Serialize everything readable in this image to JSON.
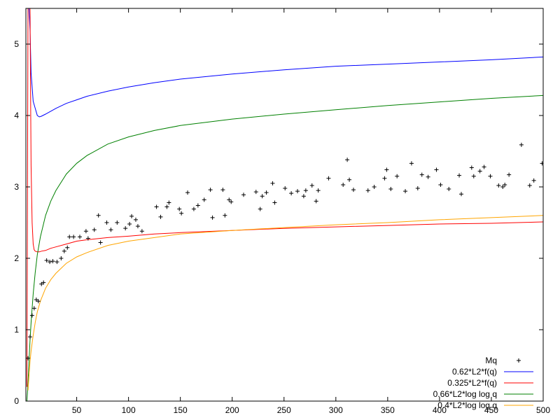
{
  "chart_data": {
    "type": "line",
    "xlim": [
      1,
      500
    ],
    "ylim": [
      0,
      5.5
    ],
    "xticks": [
      50,
      100,
      150,
      200,
      250,
      300,
      350,
      400,
      450,
      500
    ],
    "yticks": [
      0,
      1,
      2,
      3,
      4,
      5
    ],
    "grid": false,
    "legend_position": "bottom-right",
    "series": [
      {
        "name": "0.62*L2*f(q)",
        "color": "#0000ff",
        "style": "line",
        "x": [
          2,
          3,
          4,
          5,
          6,
          8,
          10,
          12,
          14,
          16,
          20,
          25,
          30,
          40,
          50,
          60,
          80,
          100,
          125,
          150,
          200,
          250,
          300,
          350,
          400,
          450,
          500
        ],
        "y": [
          5.5,
          5.5,
          5.5,
          5.2,
          4.6,
          4.2,
          4.1,
          4.0,
          3.98,
          3.99,
          4.02,
          4.06,
          4.1,
          4.17,
          4.22,
          4.27,
          4.34,
          4.4,
          4.46,
          4.51,
          4.58,
          4.64,
          4.69,
          4.72,
          4.75,
          4.78,
          4.82
        ]
      },
      {
        "name": "0.325*L2*f(q)",
        "color": "#ff0000",
        "style": "line",
        "x": [
          2,
          3,
          4,
          5,
          6,
          7,
          8,
          9,
          10,
          12,
          14,
          16,
          20,
          25,
          30,
          40,
          50,
          60,
          80,
          100,
          125,
          150,
          200,
          250,
          300,
          350,
          400,
          450,
          500
        ],
        "y": [
          0.2,
          5.5,
          5.5,
          5.5,
          3.3,
          2.5,
          2.2,
          2.12,
          2.1,
          2.09,
          2.09,
          2.1,
          2.11,
          2.14,
          2.16,
          2.2,
          2.24,
          2.26,
          2.29,
          2.31,
          2.34,
          2.36,
          2.39,
          2.42,
          2.44,
          2.46,
          2.48,
          2.49,
          2.51
        ]
      },
      {
        "name": "0.66*L2*log log q",
        "color": "#008000",
        "style": "line",
        "x": [
          2,
          3,
          4,
          5,
          6,
          8,
          10,
          12,
          15,
          20,
          25,
          30,
          40,
          50,
          60,
          80,
          100,
          125,
          150,
          200,
          250,
          300,
          350,
          400,
          450,
          500
        ],
        "y": [
          0.0,
          0.25,
          0.55,
          0.85,
          1.1,
          1.5,
          1.8,
          2.05,
          2.3,
          2.6,
          2.8,
          2.95,
          3.18,
          3.33,
          3.44,
          3.6,
          3.7,
          3.79,
          3.86,
          3.95,
          4.02,
          4.08,
          4.14,
          4.19,
          4.24,
          4.28
        ]
      },
      {
        "name": "0.4*L2*log log q",
        "color": "#ffa500",
        "style": "line",
        "x": [
          3,
          4,
          5,
          6,
          8,
          10,
          12,
          15,
          20,
          25,
          30,
          40,
          50,
          60,
          80,
          100,
          125,
          150,
          200,
          250,
          300,
          350,
          400,
          450,
          500
        ],
        "y": [
          0.15,
          0.35,
          0.55,
          0.7,
          0.92,
          1.1,
          1.25,
          1.4,
          1.58,
          1.7,
          1.79,
          1.93,
          2.02,
          2.08,
          2.18,
          2.24,
          2.29,
          2.34,
          2.39,
          2.43,
          2.47,
          2.5,
          2.54,
          2.57,
          2.6
        ]
      },
      {
        "name": "Mq",
        "color": "#000000",
        "style": "points",
        "x": [
          3,
          5,
          7,
          9,
          11,
          13,
          16,
          18,
          21,
          24,
          27,
          31,
          35,
          38,
          41,
          43,
          47,
          53,
          59,
          61,
          67,
          71,
          73,
          79,
          83,
          89,
          97,
          101,
          103,
          107,
          109,
          113,
          127,
          131,
          137,
          139,
          149,
          151,
          157,
          163,
          167,
          173,
          179,
          181,
          191,
          193,
          197,
          199,
          211,
          223,
          227,
          229,
          233,
          239,
          241,
          251,
          257,
          263,
          269,
          271,
          277,
          281,
          283,
          293,
          307,
          311,
          313,
          317,
          331,
          337,
          347,
          349,
          353,
          359,
          367,
          373,
          379,
          383,
          389,
          397,
          401,
          409,
          419,
          421,
          431,
          433,
          439,
          443,
          449,
          457,
          461,
          463,
          467,
          479,
          487,
          491,
          499
        ],
        "y": [
          0.6,
          0.9,
          1.2,
          1.3,
          1.42,
          1.4,
          1.64,
          1.66,
          1.97,
          1.95,
          1.96,
          1.95,
          2.0,
          2.1,
          2.15,
          2.3,
          2.3,
          2.3,
          2.38,
          2.28,
          2.4,
          2.6,
          2.22,
          2.5,
          2.4,
          2.5,
          2.42,
          2.48,
          2.59,
          2.54,
          2.45,
          2.38,
          2.72,
          2.58,
          2.72,
          2.78,
          2.69,
          2.63,
          2.92,
          2.69,
          2.74,
          2.82,
          2.96,
          2.57,
          2.96,
          2.6,
          2.82,
          2.79,
          2.89,
          2.93,
          2.69,
          2.87,
          2.92,
          3.05,
          2.78,
          2.98,
          2.91,
          2.94,
          2.87,
          2.95,
          3.02,
          2.8,
          2.95,
          3.12,
          3.03,
          3.38,
          3.1,
          2.96,
          2.95,
          3.0,
          3.12,
          3.24,
          2.97,
          3.15,
          2.94,
          3.33,
          2.98,
          3.17,
          3.14,
          3.24,
          3.03,
          2.97,
          3.16,
          2.9,
          3.27,
          3.15,
          3.22,
          3.28,
          3.15,
          3.02,
          3.0,
          3.03,
          3.17,
          3.59,
          3.02,
          3.09,
          3.33
        ]
      }
    ]
  }
}
